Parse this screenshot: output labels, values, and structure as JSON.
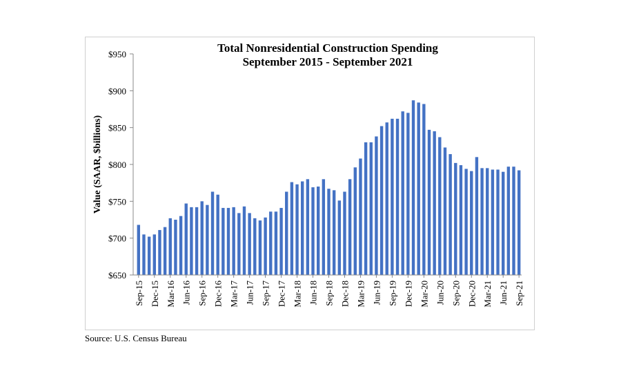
{
  "chart_data": {
    "type": "bar",
    "title": "Total Nonresidential Construction Spending",
    "subtitle": "September 2015 - September 2021",
    "xlabel": "",
    "ylabel": "Value (SAAR, $billions)",
    "ylim": [
      650,
      950
    ],
    "yticks": [
      "$650",
      "$700",
      "$750",
      "$800",
      "$850",
      "$900",
      "$950"
    ],
    "ytick_values": [
      650,
      700,
      750,
      800,
      850,
      900,
      950
    ],
    "grid": false,
    "legend": "none",
    "bar_color": "#4472c4",
    "xtick_labels": [
      "Sep-15",
      "Dec-15",
      "Mar-16",
      "Jun-16",
      "Sep-16",
      "Dec-16",
      "Mar-17",
      "Jun-17",
      "Sep-17",
      "Dec-17",
      "Mar-18",
      "Jun-18",
      "Sep-18",
      "Dec-18",
      "Mar-19",
      "Jun-19",
      "Sep-19",
      "Dec-19",
      "Mar-20",
      "Jun-20",
      "Sep-20",
      "Dec-20",
      "Mar-21",
      "Jun-21",
      "Sep-21"
    ],
    "values": [
      718,
      705,
      702,
      705,
      711,
      715,
      727,
      725,
      730,
      747,
      742,
      742,
      750,
      745,
      763,
      759,
      741,
      741,
      742,
      734,
      743,
      734,
      727,
      724,
      728,
      736,
      736,
      741,
      763,
      776,
      773,
      777,
      780,
      769,
      770,
      780,
      767,
      765,
      751,
      763,
      780,
      796,
      808,
      830,
      830,
      838,
      852,
      857,
      862,
      862,
      872,
      870,
      887,
      884,
      882,
      847,
      845,
      837,
      823,
      814,
      802,
      799,
      794,
      791,
      810,
      795,
      795,
      793,
      793,
      790,
      797,
      797,
      792
    ]
  },
  "source": "Source:  U.S. Census Bureau"
}
